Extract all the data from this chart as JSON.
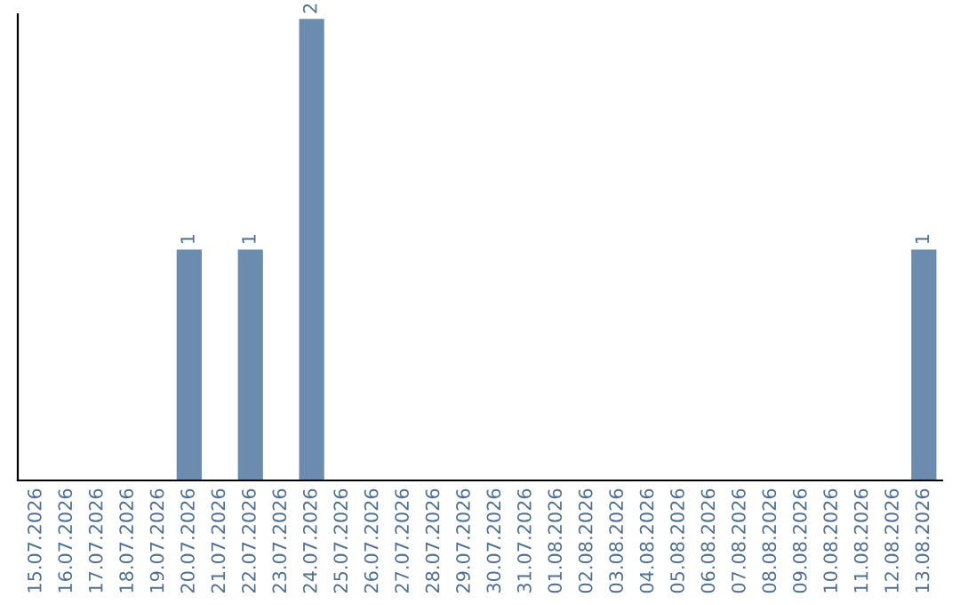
{
  "chart_data": {
    "type": "bar",
    "categories": [
      "15.07.2026",
      "16.07.2026",
      "17.07.2026",
      "18.07.2026",
      "19.07.2026",
      "20.07.2026",
      "21.07.2026",
      "22.07.2026",
      "23.07.2026",
      "24.07.2026",
      "25.07.2026",
      "26.07.2026",
      "27.07.2026",
      "28.07.2026",
      "29.07.2026",
      "30.07.2026",
      "31.07.2026",
      "01.08.2026",
      "02.08.2026",
      "03.08.2026",
      "04.08.2026",
      "05.08.2026",
      "06.08.2026",
      "07.08.2026",
      "08.08.2026",
      "09.08.2026",
      "10.08.2026",
      "11.08.2026",
      "12.08.2026",
      "13.08.2026"
    ],
    "values": [
      0,
      0,
      0,
      0,
      0,
      1,
      0,
      1,
      0,
      2,
      0,
      0,
      0,
      0,
      0,
      0,
      0,
      0,
      0,
      0,
      0,
      0,
      0,
      0,
      0,
      0,
      0,
      0,
      0,
      1
    ],
    "value_labels": [
      null,
      null,
      null,
      null,
      null,
      "1",
      null,
      "1",
      null,
      "2",
      null,
      null,
      null,
      null,
      null,
      null,
      null,
      null,
      null,
      null,
      null,
      null,
      null,
      null,
      null,
      null,
      null,
      null,
      null,
      "1"
    ],
    "color": "#6b8cae",
    "ylim": [
      0,
      2.02
    ],
    "tick_labels": "x",
    "grid": false,
    "legend": false
  }
}
